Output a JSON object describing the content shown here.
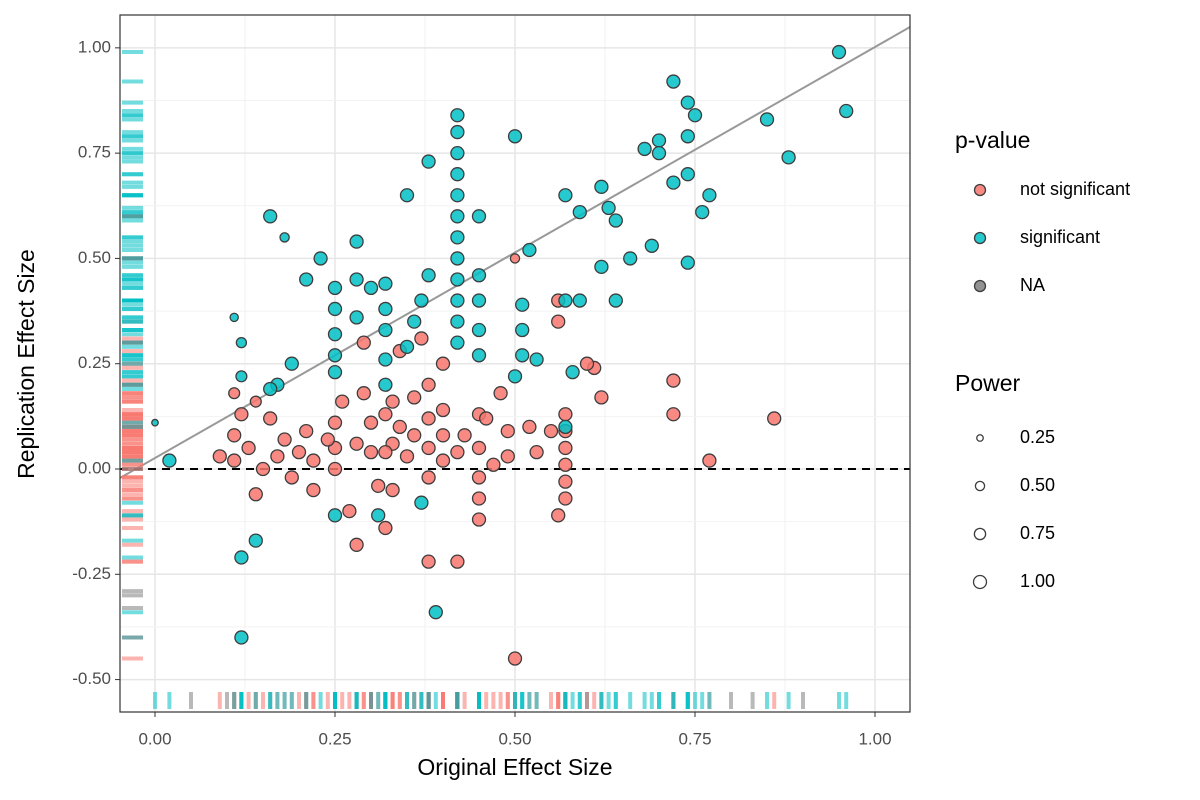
{
  "chart_data": {
    "type": "scatter",
    "x_label": "Original Effect Size",
    "y_label": "Replication Effect Size",
    "xlim": [
      -0.0486,
      1.0486
    ],
    "ylim": [
      -0.577,
      1.078
    ],
    "xticks": [
      {
        "value": 0,
        "label": "0.00"
      },
      {
        "value": 0.25,
        "label": "0.25"
      },
      {
        "value": 0.5,
        "label": "0.50"
      },
      {
        "value": 0.75,
        "label": "0.75"
      },
      {
        "value": 1,
        "label": "1.00"
      }
    ],
    "yticks": [
      {
        "value": -0.5,
        "label": "-0.50"
      },
      {
        "value": -0.25,
        "label": "-0.25"
      },
      {
        "value": 0,
        "label": "0.00"
      },
      {
        "value": 0.25,
        "label": "0.25"
      },
      {
        "value": 0.5,
        "label": "0.50"
      },
      {
        "value": 0.75,
        "label": "0.75"
      },
      {
        "value": 1,
        "label": "1.00"
      }
    ],
    "grid": true,
    "reference_line": {
      "slope": 0.976,
      "intercept": 0.026,
      "color": "#999999"
    },
    "hline": {
      "value": 0,
      "color": "#000000"
    },
    "color_legend_title": "p-value",
    "size_legend_title": "Power",
    "size_ticks": [
      {
        "value": 0.25,
        "label": "0.25"
      },
      {
        "value": 0.5,
        "label": "0.50"
      },
      {
        "value": 0.75,
        "label": "0.75"
      },
      {
        "value": 1,
        "label": "1.00"
      }
    ],
    "series": [
      {
        "name": "not significant",
        "color": "#F8766D",
        "x": [
          0.5,
          0.86,
          0.77,
          0.72,
          0.72,
          0.61,
          0.62,
          0.6,
          0.56,
          0.56,
          0.57,
          0.57,
          0.57,
          0.57,
          0.57,
          0.57,
          0.56,
          0.55,
          0.52,
          0.53,
          0.49,
          0.49,
          0.48,
          0.47,
          0.45,
          0.45,
          0.45,
          0.45,
          0.45,
          0.46,
          0.43,
          0.42,
          0.42,
          0.38,
          0.4,
          0.4,
          0.4,
          0.38,
          0.38,
          0.38,
          0.38,
          0.36,
          0.36,
          0.35,
          0.34,
          0.33,
          0.33,
          0.33,
          0.32,
          0.32,
          0.32,
          0.31,
          0.3,
          0.3,
          0.29,
          0.28,
          0.28,
          0.27,
          0.26,
          0.25,
          0.25,
          0.25,
          0.24,
          0.22,
          0.22,
          0.21,
          0.2,
          0.19,
          0.18,
          0.17,
          0.16,
          0.15,
          0.14,
          0.14,
          0.12,
          0.11,
          0.11,
          0.11,
          0.13,
          0.09,
          0.5,
          0.34,
          0.37,
          0.29,
          0.4
        ],
        "values": [
          -0.45,
          0.12,
          0.02,
          0.21,
          0.13,
          0.24,
          0.17,
          0.25,
          0.35,
          0.4,
          0.13,
          0.09,
          0.05,
          0.01,
          -0.03,
          -0.07,
          -0.11,
          0.09,
          0.1,
          0.04,
          0.09,
          0.03,
          0.18,
          0.01,
          0.13,
          0.05,
          -0.02,
          -0.07,
          -0.12,
          0.12,
          0.08,
          0.04,
          -0.22,
          -0.22,
          0.14,
          0.08,
          0.02,
          0.2,
          0.12,
          0.05,
          -0.02,
          0.17,
          0.08,
          0.03,
          0.1,
          0.16,
          0.06,
          -0.05,
          0.13,
          0.04,
          -0.14,
          -0.04,
          0.11,
          0.04,
          0.18,
          0.06,
          -0.18,
          -0.1,
          0.16,
          0.11,
          0.05,
          0.0,
          0.07,
          0.02,
          -0.05,
          0.09,
          0.04,
          -0.02,
          0.07,
          0.03,
          0.12,
          0.0,
          0.16,
          -0.06,
          0.13,
          0.08,
          0.02,
          0.18,
          0.05,
          0.03,
          0.5,
          0.28,
          0.31,
          0.3,
          0.25
        ],
        "size": [
          1,
          1,
          1,
          1,
          1,
          1,
          1,
          1,
          1,
          1,
          1,
          1,
          1,
          1,
          1,
          1,
          1,
          1,
          1,
          1,
          1,
          1,
          1,
          1,
          1,
          1,
          1,
          1,
          1,
          1,
          1,
          1,
          1,
          1,
          1,
          1,
          1,
          1,
          1,
          1,
          1,
          1,
          1,
          1,
          1,
          1,
          1,
          1,
          1,
          1,
          1,
          1,
          1,
          1,
          1,
          1,
          1,
          1,
          1,
          1,
          1,
          1,
          1,
          1,
          1,
          1,
          1,
          1,
          1,
          1,
          1,
          1,
          0.7,
          1,
          1,
          1,
          1,
          0.7,
          1,
          1,
          0.5,
          1,
          1,
          1,
          1
        ]
      },
      {
        "name": "significant",
        "color": "#00BFC4",
        "x": [
          0.95,
          0.96,
          0.88,
          0.85,
          0.72,
          0.74,
          0.75,
          0.74,
          0.7,
          0.68,
          0.7,
          0.77,
          0.74,
          0.72,
          0.76,
          0.74,
          0.69,
          0.64,
          0.63,
          0.62,
          0.57,
          0.59,
          0.62,
          0.66,
          0.59,
          0.64,
          0.57,
          0.52,
          0.5,
          0.45,
          0.42,
          0.42,
          0.42,
          0.42,
          0.42,
          0.42,
          0.42,
          0.42,
          0.42,
          0.42,
          0.42,
          0.42,
          0.38,
          0.35,
          0.38,
          0.37,
          0.45,
          0.45,
          0.45,
          0.45,
          0.51,
          0.51,
          0.51,
          0.5,
          0.53,
          0.32,
          0.32,
          0.32,
          0.32,
          0.32,
          0.28,
          0.28,
          0.28,
          0.25,
          0.25,
          0.25,
          0.25,
          0.25,
          0.23,
          0.21,
          0.16,
          0.18,
          0.19,
          0.17,
          0.16,
          0.11,
          0.12,
          0.12,
          0.02,
          0.0,
          0.12,
          0.14,
          0.12,
          0.39,
          0.25,
          0.31,
          0.57,
          0.58,
          0.37,
          0.35,
          0.3,
          0.36
        ],
        "values": [
          0.99,
          0.85,
          0.74,
          0.83,
          0.92,
          0.87,
          0.84,
          0.79,
          0.78,
          0.76,
          0.75,
          0.65,
          0.7,
          0.68,
          0.61,
          0.49,
          0.53,
          0.59,
          0.62,
          0.67,
          0.65,
          0.61,
          0.48,
          0.5,
          0.4,
          0.4,
          0.4,
          0.52,
          0.79,
          0.6,
          0.84,
          0.8,
          0.75,
          0.7,
          0.65,
          0.6,
          0.55,
          0.5,
          0.45,
          0.4,
          0.35,
          0.3,
          0.73,
          0.65,
          0.46,
          0.4,
          0.46,
          0.4,
          0.33,
          0.27,
          0.39,
          0.33,
          0.27,
          0.22,
          0.26,
          0.44,
          0.38,
          0.33,
          0.26,
          0.2,
          0.54,
          0.45,
          0.36,
          0.43,
          0.38,
          0.32,
          0.27,
          0.23,
          0.5,
          0.45,
          0.6,
          0.55,
          0.25,
          0.2,
          0.19,
          0.36,
          0.3,
          0.22,
          0.02,
          0.11,
          -0.21,
          -0.17,
          -0.4,
          -0.34,
          -0.11,
          -0.11,
          0.1,
          0.23,
          -0.08,
          0.29,
          0.43,
          0.35
        ],
        "size": [
          1,
          1,
          1,
          1,
          1,
          1,
          1,
          1,
          1,
          1,
          1,
          1,
          1,
          1,
          1,
          1,
          1,
          1,
          1,
          1,
          1,
          1,
          1,
          1,
          1,
          1,
          1,
          1,
          1,
          1,
          1,
          1,
          1,
          1,
          1,
          1,
          1,
          1,
          1,
          1,
          1,
          1,
          1,
          1,
          1,
          1,
          1,
          1,
          1,
          1,
          1,
          1,
          1,
          1,
          1,
          1,
          1,
          1,
          1,
          1,
          1,
          1,
          1,
          1,
          1,
          1,
          1,
          1,
          1,
          1,
          1,
          0.5,
          1,
          1,
          1,
          0.4,
          0.6,
          0.7,
          1,
          0.25,
          1,
          1,
          1,
          1,
          1,
          1,
          1,
          1,
          1,
          1,
          1,
          1
        ]
      },
      {
        "name": "NA",
        "color": "#7F7F7F",
        "x": [
          0.05,
          0.1,
          0.21,
          0.3,
          0.38,
          0.42,
          0.6,
          0.8,
          0.83,
          0.9
        ],
        "values": [
          -0.3,
          -0.33,
          -0.4,
          0.0,
          0.1,
          -0.29,
          0.5,
          0.3,
          0.2,
          0.6
        ],
        "size": [
          null,
          null,
          null,
          null,
          null,
          null,
          null,
          null,
          null,
          null
        ]
      }
    ]
  }
}
